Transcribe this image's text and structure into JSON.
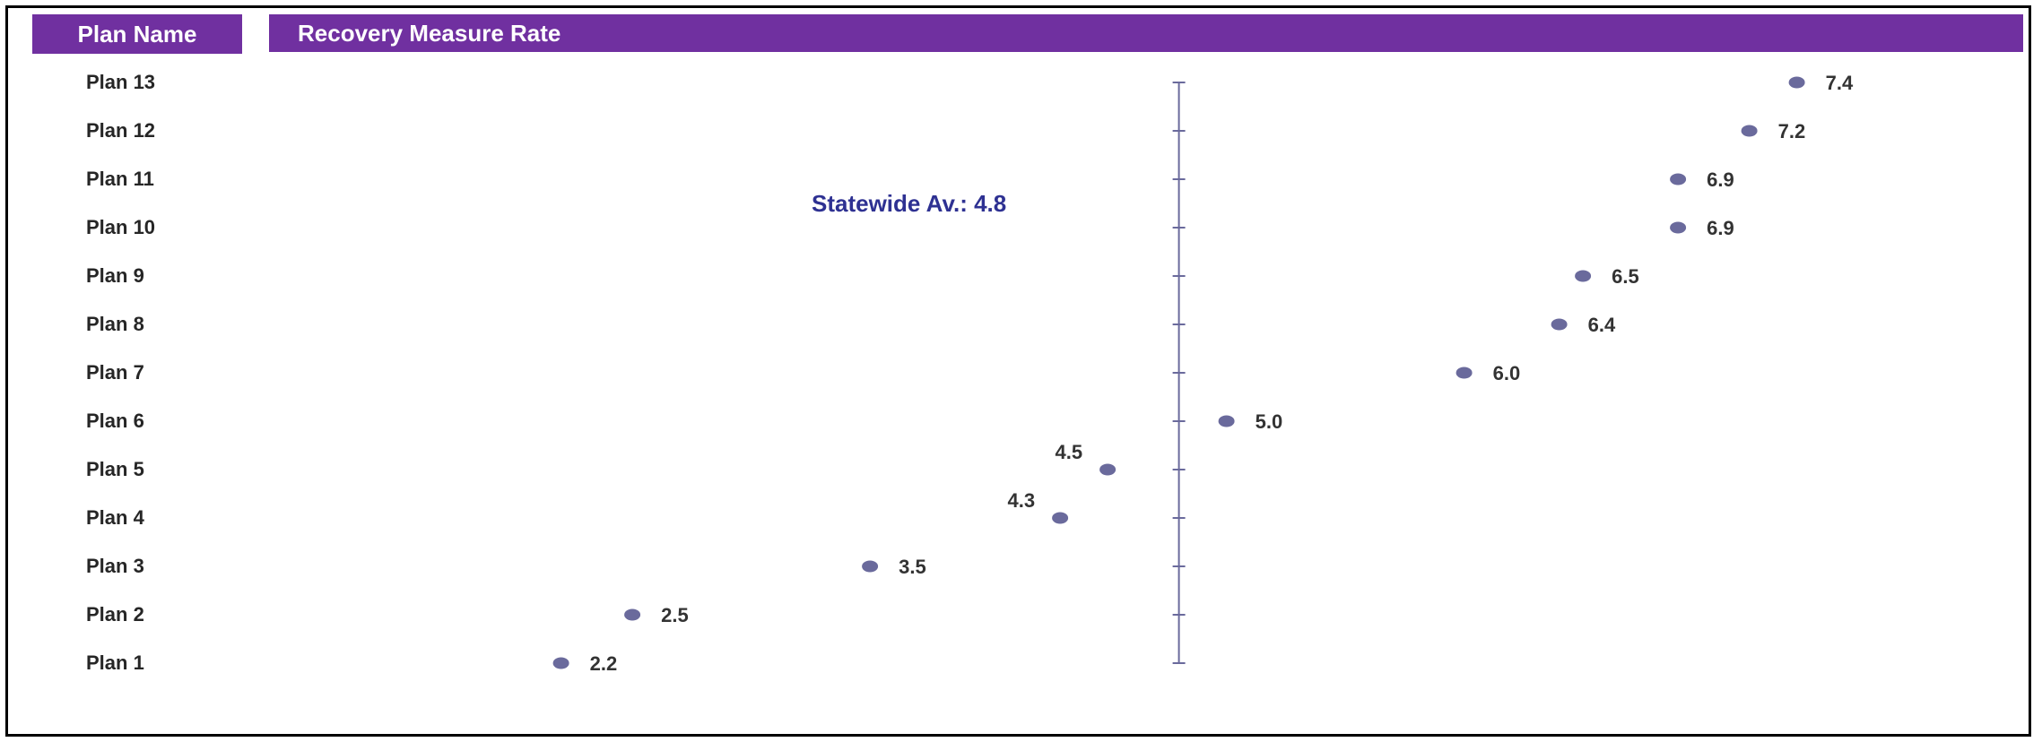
{
  "header": {
    "plan_name_label": "Plan Name",
    "rate_label": "Recovery Measure Rate"
  },
  "colors": {
    "header_bg": "#7030a0",
    "header_text": "#ffffff",
    "marker": "#6a6a9c",
    "axis": "#6a6a9c",
    "avg_text": "#2e3192",
    "label_text": "#262626"
  },
  "chart_data": {
    "type": "scatter",
    "title": "Recovery Measure Rate",
    "categories": [
      "Plan 1",
      "Plan 2",
      "Plan 3",
      "Plan 4",
      "Plan 5",
      "Plan 6",
      "Plan 7",
      "Plan 8",
      "Plan 9",
      "Plan 10",
      "Plan 11",
      "Plan 12",
      "Plan 13"
    ],
    "values": [
      2.2,
      2.5,
      3.5,
      4.3,
      4.5,
      5.0,
      6.0,
      6.4,
      6.5,
      6.9,
      6.9,
      7.2,
      7.4
    ],
    "value_labels": [
      "2.2",
      "2.5",
      "3.5",
      "4.3",
      "4.5",
      "5.0",
      "6.0",
      "6.4",
      "6.5",
      "6.9",
      "6.9",
      "7.2",
      "7.4"
    ],
    "reference_line": {
      "value": 4.8,
      "label": "Statewide Av.: 4.8"
    },
    "xlim": [
      0,
      8.0
    ],
    "grid": false,
    "legend": "none"
  }
}
